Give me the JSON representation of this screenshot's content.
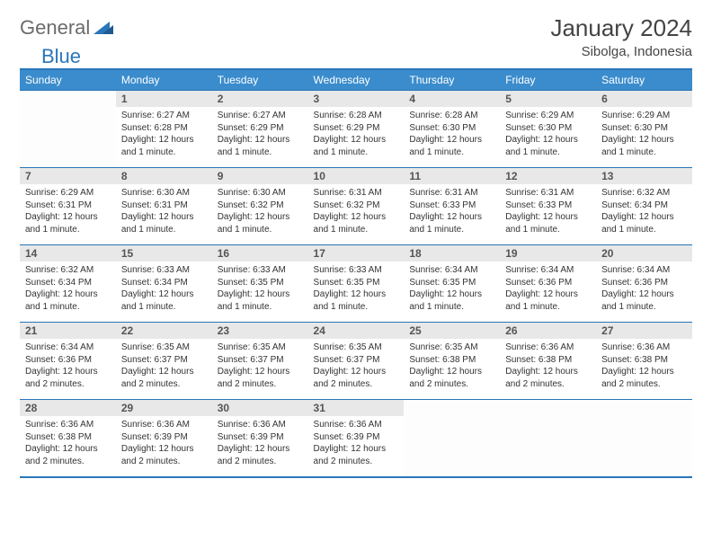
{
  "logo": {
    "part1": "General",
    "part2": "Blue"
  },
  "title": "January 2024",
  "location": "Sibolga, Indonesia",
  "weekdays": [
    "Sunday",
    "Monday",
    "Tuesday",
    "Wednesday",
    "Thursday",
    "Friday",
    "Saturday"
  ],
  "colors": {
    "header_bg": "#3a8ccc",
    "border": "#2976b9",
    "daynum_bg": "#e8e8e8",
    "logo_gray": "#6b6b6b",
    "logo_blue": "#2976b9"
  },
  "weeks": [
    [
      null,
      {
        "n": "1",
        "sr": "6:27 AM",
        "ss": "6:28 PM",
        "dl": "12 hours and 1 minute."
      },
      {
        "n": "2",
        "sr": "6:27 AM",
        "ss": "6:29 PM",
        "dl": "12 hours and 1 minute."
      },
      {
        "n": "3",
        "sr": "6:28 AM",
        "ss": "6:29 PM",
        "dl": "12 hours and 1 minute."
      },
      {
        "n": "4",
        "sr": "6:28 AM",
        "ss": "6:30 PM",
        "dl": "12 hours and 1 minute."
      },
      {
        "n": "5",
        "sr": "6:29 AM",
        "ss": "6:30 PM",
        "dl": "12 hours and 1 minute."
      },
      {
        "n": "6",
        "sr": "6:29 AM",
        "ss": "6:30 PM",
        "dl": "12 hours and 1 minute."
      }
    ],
    [
      {
        "n": "7",
        "sr": "6:29 AM",
        "ss": "6:31 PM",
        "dl": "12 hours and 1 minute."
      },
      {
        "n": "8",
        "sr": "6:30 AM",
        "ss": "6:31 PM",
        "dl": "12 hours and 1 minute."
      },
      {
        "n": "9",
        "sr": "6:30 AM",
        "ss": "6:32 PM",
        "dl": "12 hours and 1 minute."
      },
      {
        "n": "10",
        "sr": "6:31 AM",
        "ss": "6:32 PM",
        "dl": "12 hours and 1 minute."
      },
      {
        "n": "11",
        "sr": "6:31 AM",
        "ss": "6:33 PM",
        "dl": "12 hours and 1 minute."
      },
      {
        "n": "12",
        "sr": "6:31 AM",
        "ss": "6:33 PM",
        "dl": "12 hours and 1 minute."
      },
      {
        "n": "13",
        "sr": "6:32 AM",
        "ss": "6:34 PM",
        "dl": "12 hours and 1 minute."
      }
    ],
    [
      {
        "n": "14",
        "sr": "6:32 AM",
        "ss": "6:34 PM",
        "dl": "12 hours and 1 minute."
      },
      {
        "n": "15",
        "sr": "6:33 AM",
        "ss": "6:34 PM",
        "dl": "12 hours and 1 minute."
      },
      {
        "n": "16",
        "sr": "6:33 AM",
        "ss": "6:35 PM",
        "dl": "12 hours and 1 minute."
      },
      {
        "n": "17",
        "sr": "6:33 AM",
        "ss": "6:35 PM",
        "dl": "12 hours and 1 minute."
      },
      {
        "n": "18",
        "sr": "6:34 AM",
        "ss": "6:35 PM",
        "dl": "12 hours and 1 minute."
      },
      {
        "n": "19",
        "sr": "6:34 AM",
        "ss": "6:36 PM",
        "dl": "12 hours and 1 minute."
      },
      {
        "n": "20",
        "sr": "6:34 AM",
        "ss": "6:36 PM",
        "dl": "12 hours and 1 minute."
      }
    ],
    [
      {
        "n": "21",
        "sr": "6:34 AM",
        "ss": "6:36 PM",
        "dl": "12 hours and 2 minutes."
      },
      {
        "n": "22",
        "sr": "6:35 AM",
        "ss": "6:37 PM",
        "dl": "12 hours and 2 minutes."
      },
      {
        "n": "23",
        "sr": "6:35 AM",
        "ss": "6:37 PM",
        "dl": "12 hours and 2 minutes."
      },
      {
        "n": "24",
        "sr": "6:35 AM",
        "ss": "6:37 PM",
        "dl": "12 hours and 2 minutes."
      },
      {
        "n": "25",
        "sr": "6:35 AM",
        "ss": "6:38 PM",
        "dl": "12 hours and 2 minutes."
      },
      {
        "n": "26",
        "sr": "6:36 AM",
        "ss": "6:38 PM",
        "dl": "12 hours and 2 minutes."
      },
      {
        "n": "27",
        "sr": "6:36 AM",
        "ss": "6:38 PM",
        "dl": "12 hours and 2 minutes."
      }
    ],
    [
      {
        "n": "28",
        "sr": "6:36 AM",
        "ss": "6:38 PM",
        "dl": "12 hours and 2 minutes."
      },
      {
        "n": "29",
        "sr": "6:36 AM",
        "ss": "6:39 PM",
        "dl": "12 hours and 2 minutes."
      },
      {
        "n": "30",
        "sr": "6:36 AM",
        "ss": "6:39 PM",
        "dl": "12 hours and 2 minutes."
      },
      {
        "n": "31",
        "sr": "6:36 AM",
        "ss": "6:39 PM",
        "dl": "12 hours and 2 minutes."
      },
      null,
      null,
      null
    ]
  ],
  "labels": {
    "sunrise": "Sunrise:",
    "sunset": "Sunset:",
    "daylight": "Daylight:"
  }
}
